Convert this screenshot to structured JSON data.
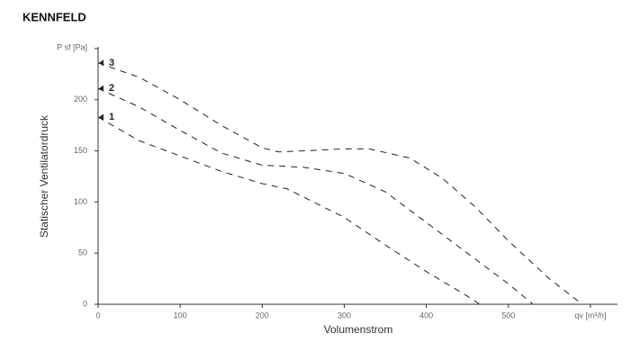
{
  "chart_data": {
    "type": "line",
    "title": "KENNFELD",
    "x_label": "Volumenstrom",
    "y_label": "Statischer Ventilatordruck",
    "xlim": [
      0,
      633
    ],
    "ylim": [
      0,
      250
    ],
    "xticks": [
      0,
      100,
      200,
      300,
      400,
      500,
      {
        "value": 600,
        "label": "qv [m³/h]"
      }
    ],
    "yticks": [
      0,
      50,
      100,
      150,
      200,
      {
        "value": 250,
        "label": "P sf [Pa]"
      }
    ],
    "grid": false,
    "series": [
      {
        "name": "1",
        "color": "#222222",
        "x": [
          0,
          50,
          100,
          150,
          200,
          230,
          250,
          300,
          350,
          400,
          450,
          465
        ],
        "values": [
          183,
          160,
          145,
          130,
          118,
          113,
          105,
          85,
          58,
          32,
          8,
          0
        ]
      },
      {
        "name": "2",
        "color": "#222222",
        "x": [
          0,
          50,
          100,
          150,
          200,
          250,
          300,
          350,
          400,
          450,
          500,
          530
        ],
        "values": [
          211,
          193,
          170,
          148,
          136,
          134,
          128,
          110,
          80,
          50,
          20,
          0
        ]
      },
      {
        "name": "3",
        "color": "#222222",
        "x": [
          0,
          50,
          100,
          150,
          200,
          220,
          250,
          300,
          330,
          380,
          420,
          460,
          500,
          550,
          590
        ],
        "values": [
          236,
          222,
          200,
          175,
          153,
          149,
          150,
          152,
          152,
          143,
          123,
          95,
          62,
          25,
          0
        ]
      }
    ]
  }
}
